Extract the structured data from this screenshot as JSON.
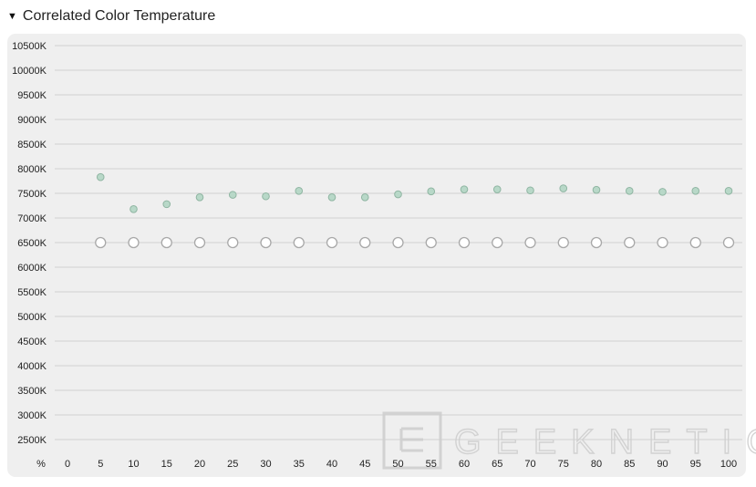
{
  "header": {
    "caret": "▼",
    "title": "Correlated Color Temperature"
  },
  "watermark": "GEEKNETIC",
  "chart_data": {
    "type": "scatter",
    "title": "Correlated Color Temperature",
    "x_axis_label": "%",
    "x": [
      0,
      5,
      10,
      15,
      20,
      25,
      30,
      35,
      40,
      45,
      50,
      55,
      60,
      65,
      70,
      75,
      80,
      85,
      90,
      95,
      100
    ],
    "x_tick_labels": [
      "0",
      "5",
      "10",
      "15",
      "20",
      "25",
      "30",
      "35",
      "40",
      "45",
      "50",
      "55",
      "60",
      "65",
      "70",
      "75",
      "80",
      "85",
      "90",
      "95",
      "100"
    ],
    "y_tick_labels": [
      "10500K",
      "10000K",
      "9500K",
      "9000K",
      "8500K",
      "8000K",
      "7500K",
      "7000K",
      "6500K",
      "6000K",
      "5500K",
      "5000K",
      "4500K",
      "4000K",
      "3500K",
      "3000K",
      "2500K"
    ],
    "y_ticks": [
      10500,
      10000,
      9500,
      9000,
      8500,
      8000,
      7500,
      7000,
      6500,
      6000,
      5500,
      5000,
      4500,
      4000,
      3500,
      3000,
      2500
    ],
    "ylim": [
      2000,
      10500
    ],
    "grid": true,
    "series": [
      {
        "marker": "filled-green",
        "x": [
          5,
          10,
          15,
          20,
          25,
          30,
          35,
          40,
          45,
          50,
          55,
          60,
          65,
          70,
          75,
          80,
          85,
          90,
          95,
          100
        ],
        "values": [
          7830,
          7180,
          7280,
          7420,
          7470,
          7440,
          7550,
          7420,
          7420,
          7480,
          7540,
          7580,
          7580,
          7560,
          7600,
          7570,
          7550,
          7530,
          7550,
          7550
        ]
      },
      {
        "marker": "hollow-gray",
        "x": [
          5,
          10,
          15,
          20,
          25,
          30,
          35,
          40,
          45,
          50,
          55,
          60,
          65,
          70,
          75,
          80,
          85,
          90,
          95,
          100
        ],
        "values": [
          6500,
          6500,
          6500,
          6500,
          6500,
          6500,
          6500,
          6500,
          6500,
          6500,
          6500,
          6500,
          6500,
          6500,
          6500,
          6500,
          6500,
          6500,
          6500,
          6500
        ]
      }
    ],
    "colors": {
      "filled_fill": "#b8d8c8",
      "filled_stroke": "#8fb5a2",
      "hollow_stroke": "#a8a8a8",
      "grid": "#d2d2d2"
    }
  }
}
